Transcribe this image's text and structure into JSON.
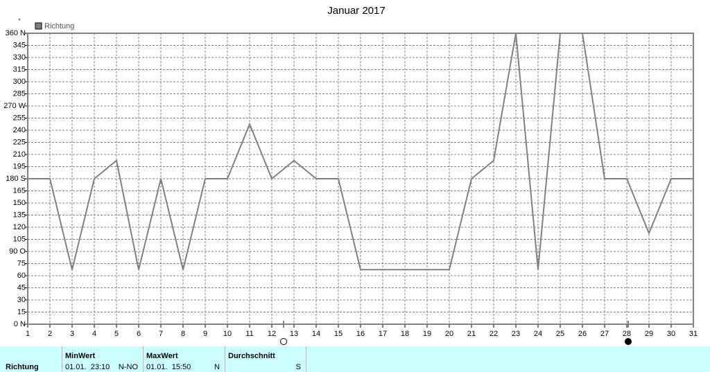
{
  "chart_data": {
    "type": "line",
    "title": "Januar 2017",
    "y_unit": "°",
    "x": [
      1,
      2,
      3,
      4,
      5,
      6,
      7,
      8,
      9,
      10,
      11,
      12,
      13,
      14,
      15,
      16,
      17,
      18,
      19,
      20,
      21,
      22,
      23,
      24,
      25,
      26,
      27,
      28,
      29,
      30,
      31
    ],
    "series": [
      {
        "name": "Richtung",
        "color": "#808080",
        "values": [
          180,
          180,
          67.5,
          180,
          202.5,
          67.5,
          180,
          67.5,
          180,
          180,
          247.5,
          180,
          202.5,
          180,
          180,
          67.5,
          67.5,
          67.5,
          67.5,
          67.5,
          180,
          202.5,
          360,
          67.5,
          360,
          360,
          180,
          180,
          112.5,
          180,
          180
        ]
      }
    ],
    "xlim": [
      1,
      31
    ],
    "xticks": [
      1,
      2,
      3,
      4,
      5,
      6,
      7,
      8,
      9,
      10,
      11,
      12,
      13,
      14,
      15,
      16,
      17,
      18,
      19,
      20,
      21,
      22,
      23,
      24,
      25,
      26,
      27,
      28,
      29,
      30,
      31
    ],
    "ylim": [
      0,
      360
    ],
    "yticks": [
      {
        "value": 0,
        "label": "0 N"
      },
      15,
      30,
      45,
      60,
      75,
      {
        "value": 90,
        "label": "90 O"
      },
      105,
      120,
      135,
      150,
      165,
      {
        "value": 180,
        "label": "180 S"
      },
      195,
      210,
      225,
      240,
      255,
      {
        "value": 270,
        "label": "270 W"
      },
      285,
      300,
      315,
      330,
      345,
      {
        "value": 360,
        "label": "360 N"
      }
    ],
    "grid": true,
    "legend": "top-left"
  },
  "summary": {
    "row_label": "Richtung",
    "columns": [
      {
        "header": "MinWert",
        "date": "01.01.  23:10",
        "value": "N-NO"
      },
      {
        "header": "MaxWert",
        "date": "01.01.  15:50",
        "value": "N"
      },
      {
        "header": "Durchschnitt",
        "value": "S"
      }
    ]
  }
}
